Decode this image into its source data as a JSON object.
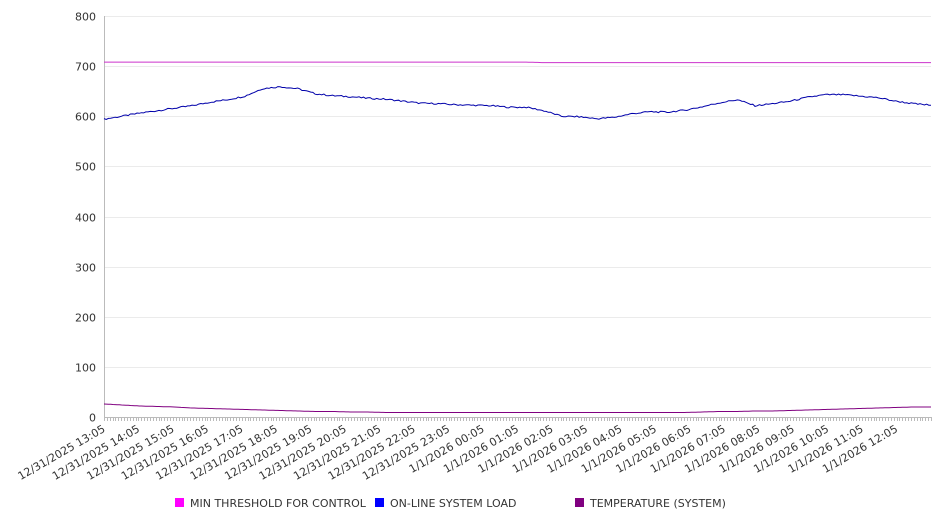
{
  "chart_data": {
    "type": "line",
    "title": "",
    "xlabel": "",
    "ylabel": "",
    "ylim": [
      0,
      800
    ],
    "yticks": [
      0,
      100,
      200,
      300,
      400,
      500,
      600,
      700,
      800
    ],
    "grid": true,
    "legend_position": "bottom",
    "x_tick_labels": [
      "12/31/2025 13:05",
      "12/31/2025 14:05",
      "12/31/2025 15:05",
      "12/31/2025 16:05",
      "12/31/2025 17:05",
      "12/31/2025 18:05",
      "12/31/2025 19:05",
      "12/31/2025 20:05",
      "12/31/2025 21:05",
      "12/31/2025 22:05",
      "12/31/2025 23:05",
      "1/1/2026 00:05",
      "1/1/2026 01:05",
      "1/1/2026 02:05",
      "1/1/2026 03:05",
      "1/1/2026 04:05",
      "1/1/2026 05:05",
      "1/1/2026 06:05",
      "1/1/2026 07:05",
      "1/1/2026 08:05",
      "1/1/2026 09:05",
      "1/1/2026 10:05",
      "1/1/2026 11:05",
      "1/1/2026 12:05"
    ],
    "x": [
      "12/31/2025 13:05",
      "12/31/2025 13:35",
      "12/31/2025 14:05",
      "12/31/2025 14:35",
      "12/31/2025 15:05",
      "12/31/2025 15:35",
      "12/31/2025 16:05",
      "12/31/2025 16:35",
      "12/31/2025 17:05",
      "12/31/2025 17:35",
      "12/31/2025 18:05",
      "12/31/2025 18:35",
      "12/31/2025 19:05",
      "12/31/2025 19:35",
      "12/31/2025 20:05",
      "12/31/2025 20:35",
      "12/31/2025 21:05",
      "12/31/2025 21:35",
      "12/31/2025 22:05",
      "12/31/2025 22:35",
      "12/31/2025 23:05",
      "12/31/2025 23:35",
      "1/1/2026 00:05",
      "1/1/2026 00:35",
      "1/1/2026 01:05",
      "1/1/2026 01:35",
      "1/1/2026 02:05",
      "1/1/2026 02:35",
      "1/1/2026 03:05",
      "1/1/2026 03:35",
      "1/1/2026 04:05",
      "1/1/2026 04:35",
      "1/1/2026 05:05",
      "1/1/2026 05:35",
      "1/1/2026 06:05",
      "1/1/2026 06:35",
      "1/1/2026 07:05",
      "1/1/2026 07:35",
      "1/1/2026 08:05",
      "1/1/2026 08:35",
      "1/1/2026 09:05",
      "1/1/2026 09:35",
      "1/1/2026 10:05",
      "1/1/2026 10:35",
      "1/1/2026 11:05",
      "1/1/2026 11:35",
      "1/1/2026 12:05",
      "1/1/2026 12:35"
    ],
    "series": [
      {
        "name": "MIN THRESHOLD FOR CONTROL",
        "color": "#cc33cc",
        "legend_color": "#ff00ff",
        "values": [
          708,
          708,
          708,
          708,
          708,
          708,
          708,
          708,
          708,
          708,
          708,
          708,
          708,
          708,
          708,
          708,
          708,
          708,
          708,
          708,
          708,
          708,
          708,
          708,
          708,
          707,
          707,
          707,
          707,
          707,
          707,
          707,
          707,
          707,
          707,
          707,
          707,
          707,
          707,
          707,
          707,
          707,
          707,
          707,
          707,
          707,
          707,
          707
        ]
      },
      {
        "name": "ON-LINE SYSTEM LOAD",
        "color": "#0000aa",
        "legend_color": "#0000ff",
        "values": [
          594,
          600,
          606,
          611,
          616,
          621,
          628,
          633,
          640,
          655,
          659,
          655,
          645,
          641,
          639,
          636,
          634,
          630,
          626,
          625,
          623,
          622,
          621,
          618,
          618,
          611,
          600,
          599,
          595,
          598,
          605,
          609,
          608,
          612,
          619,
          627,
          633,
          621,
          625,
          630,
          638,
          643,
          643,
          640,
          637,
          630,
          625,
          622
        ]
      },
      {
        "name": "TEMPERATURE (SYSTEM)",
        "color": "#800080",
        "legend_color": "#800080",
        "values": [
          26,
          24,
          22,
          21,
          20,
          18,
          17,
          16,
          15,
          14,
          13,
          12,
          11,
          11,
          10,
          10,
          9,
          9,
          9,
          9,
          9,
          9,
          9,
          9,
          9,
          9,
          9,
          9,
          9,
          9,
          9,
          9,
          9,
          9,
          10,
          11,
          11,
          12,
          12,
          13,
          14,
          15,
          16,
          17,
          18,
          19,
          20,
          20
        ]
      }
    ]
  }
}
